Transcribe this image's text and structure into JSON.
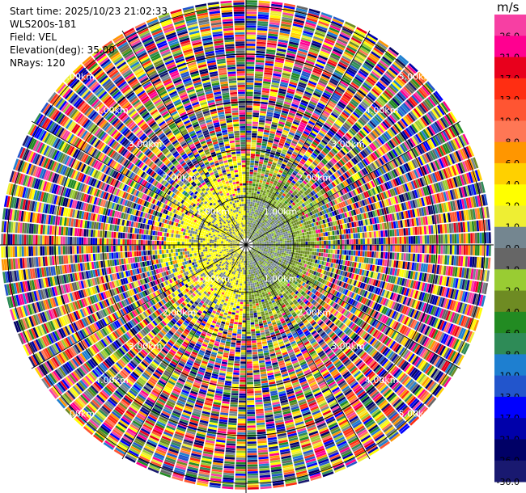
{
  "info": {
    "start_time": "Start time: 2025/10/23 21:02:33",
    "instrument": "WLS200s-181",
    "field": "Field: VEL",
    "elevation": "Elevation(deg): 35.00",
    "nrays": "NRays: 120"
  },
  "colorbar": {
    "unit": "m/s",
    "bins": [
      {
        "label": "26.0",
        "color": "#f73fa3"
      },
      {
        "label": "21.0",
        "color": "#ff0090"
      },
      {
        "label": "17.0",
        "color": "#e8001c"
      },
      {
        "label": "13.0",
        "color": "#ff2e12"
      },
      {
        "label": "10.0",
        "color": "#ff5532"
      },
      {
        "label": "8.0",
        "color": "#ff7755"
      },
      {
        "label": "6.0",
        "color": "#ff9600"
      },
      {
        "label": "4.0",
        "color": "#ffd000"
      },
      {
        "label": "2.0",
        "color": "#ffff00"
      },
      {
        "label": "1.0",
        "color": "#eeee33"
      },
      {
        "label": "0.0",
        "color": "#748690"
      },
      {
        "label": "-1.0",
        "color": "#666666"
      },
      {
        "label": "-2.0",
        "color": "#99cc33"
      },
      {
        "label": "-4.0",
        "color": "#6e8b23"
      },
      {
        "label": "-6.0",
        "color": "#228b22"
      },
      {
        "label": "-8.0",
        "color": "#2e8b57"
      },
      {
        "label": "-10.0",
        "color": "#1e7fd0"
      },
      {
        "label": "-13.0",
        "color": "#2255cc"
      },
      {
        "label": "-17.0",
        "color": "#0000ff"
      },
      {
        "label": "-21.0",
        "color": "#0000aa"
      },
      {
        "label": "-26.0",
        "color": "#000066"
      },
      {
        "label": "-30.0",
        "color": "#191970"
      }
    ]
  },
  "chart_data": {
    "type": "ppi-radar",
    "field": "VEL",
    "nrays": 120,
    "range_rings_km": [
      1,
      2,
      3,
      4,
      5
    ],
    "range_labels": [
      "1.00km",
      "2.00km",
      "3.00km",
      "4.00km",
      "5.00km"
    ],
    "max_range_km": 5.1,
    "center_region_km": 1.0,
    "transition_region_km": 2.0,
    "west_half_dominant": "2.0 to 4.0 m/s (yellow)",
    "east_half_dominant": "-2.0 to -4.0 m/s (green)"
  }
}
